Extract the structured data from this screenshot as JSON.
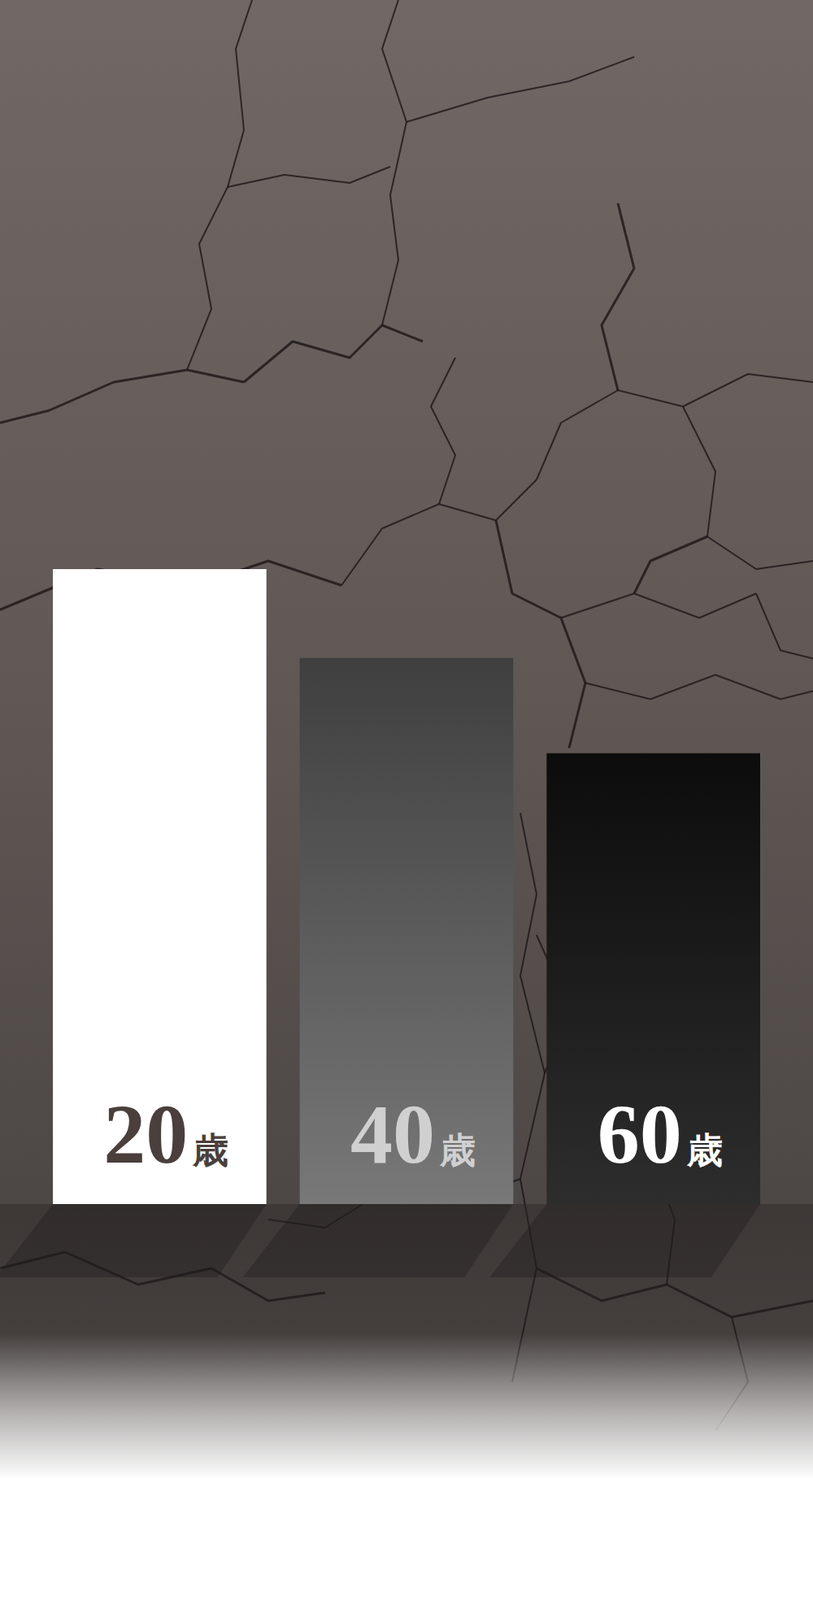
{
  "chart_data": {
    "type": "bar",
    "categories": [
      "20歳",
      "40歳",
      "60歳"
    ],
    "values": [
      100,
      86,
      71
    ],
    "colors": [
      "#ffffff",
      "#787878",
      "#2d2d2d"
    ],
    "ylim": [
      0,
      100
    ],
    "tick_labels": false,
    "grid": false
  }
}
